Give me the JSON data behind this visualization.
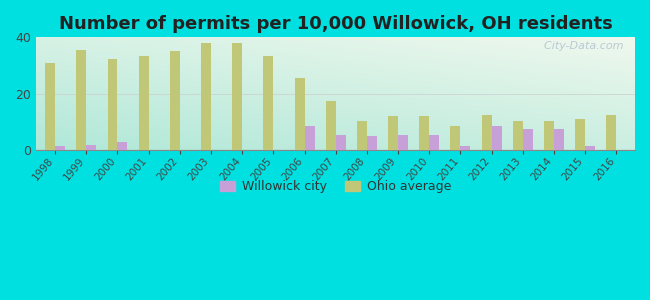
{
  "title": "Number of permits per 10,000 Willowick, OH residents",
  "years": [
    1998,
    1999,
    2000,
    2001,
    2002,
    2003,
    2004,
    2005,
    2006,
    2007,
    2008,
    2009,
    2010,
    2011,
    2012,
    2013,
    2014,
    2015,
    2016
  ],
  "willowick": [
    1.5,
    2.0,
    3.0,
    0,
    0,
    0,
    0,
    0,
    8.5,
    5.5,
    5.0,
    5.5,
    5.5,
    1.5,
    8.5,
    7.5,
    7.5,
    1.5,
    0
  ],
  "ohio_avg": [
    31.0,
    35.5,
    32.5,
    33.5,
    35.0,
    38.0,
    38.0,
    33.5,
    25.5,
    17.5,
    10.5,
    12.0,
    12.0,
    8.5,
    12.5,
    10.5,
    10.5,
    11.0,
    12.5
  ],
  "willowick_color": "#c8a0d8",
  "ohio_color": "#c0c878",
  "bg_outer": "#00e0e0",
  "bg_plot_topleft": "#b8ede0",
  "bg_plot_topright": "#f0f8ee",
  "bg_plot_bottomleft": "#a0e0d0",
  "bg_plot_bottomright": "#e8f8e0",
  "ylim": [
    0,
    40
  ],
  "yticks": [
    0,
    20,
    40
  ],
  "bar_width": 0.32,
  "title_fontsize": 13,
  "watermark": "  City-Data.com"
}
